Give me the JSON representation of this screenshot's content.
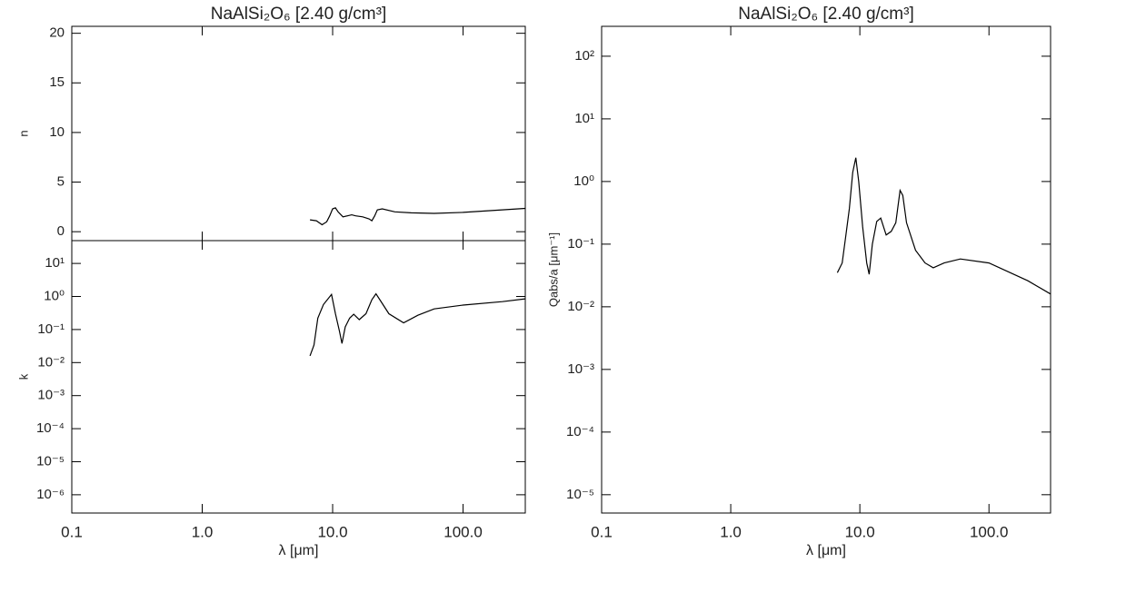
{
  "chart_data": [
    {
      "type": "line",
      "title": "NaAlSi₂O₆ [2.40 g/cm³]",
      "y_label": "n",
      "xlog": true,
      "ylog": false,
      "xlim": [
        0.1,
        300
      ],
      "ylim": [
        -0.9,
        20.7
      ],
      "yticks": [
        0,
        5,
        10,
        15,
        20
      ],
      "x": [
        6.7,
        7.5,
        8.3,
        9,
        9.5,
        10,
        10.5,
        11,
        12,
        13,
        14,
        15,
        17,
        19,
        20,
        21,
        22,
        24,
        30,
        40,
        60,
        100,
        200,
        300
      ],
      "series": [
        {
          "name": "n",
          "color": "#000000",
          "values": [
            1.2,
            1.1,
            0.7,
            1.0,
            1.6,
            2.3,
            2.4,
            2.0,
            1.5,
            1.6,
            1.7,
            1.6,
            1.5,
            1.3,
            1.1,
            1.6,
            2.2,
            2.3,
            2.0,
            1.9,
            1.85,
            1.95,
            2.2,
            2.35
          ]
        }
      ]
    },
    {
      "type": "line",
      "x_label": "λ [μm]",
      "y_label": "k",
      "xlog": true,
      "ylog": true,
      "xlim": [
        0.1,
        300
      ],
      "ylim": [
        2.8e-07,
        49
      ],
      "xticks": [
        0.1,
        {
          "value": 1,
          "label": "1.0"
        },
        {
          "value": 10,
          "label": "10.0"
        },
        {
          "value": 100,
          "label": "100.0"
        }
      ],
      "yticks": [
        {
          "value": 1e-06,
          "label": "10⁻⁶"
        },
        {
          "value": 1e-05,
          "label": "10⁻⁵"
        },
        {
          "value": 0.0001,
          "label": "10⁻⁴"
        },
        {
          "value": 0.001,
          "label": "10⁻³"
        },
        {
          "value": 0.01,
          "label": "10⁻²"
        },
        {
          "value": 0.1,
          "label": "10⁻¹"
        },
        {
          "value": 1,
          "label": "10⁰"
        },
        {
          "value": 10,
          "label": "10¹"
        }
      ],
      "x": [
        6.7,
        7.2,
        7.7,
        8.5,
        9.8,
        10.5,
        11.3,
        11.8,
        12.5,
        13.5,
        14.5,
        16,
        18,
        20,
        21.5,
        23,
        27,
        35,
        45,
        60,
        100,
        200,
        300
      ],
      "series": [
        {
          "name": "k",
          "color": "#000000",
          "values": [
            0.016,
            0.034,
            0.22,
            0.57,
            1.15,
            0.3,
            0.087,
            0.038,
            0.12,
            0.22,
            0.29,
            0.2,
            0.3,
            0.8,
            1.2,
            0.8,
            0.3,
            0.16,
            0.27,
            0.42,
            0.55,
            0.7,
            0.85
          ]
        }
      ]
    },
    {
      "type": "line",
      "title": "NaAlSi₂O₆ [2.40 g/cm³]",
      "x_label": "λ [μm]",
      "y_label": "Qabs/a [μm⁻¹]",
      "xlog": true,
      "ylog": true,
      "xlim": [
        0.1,
        300
      ],
      "ylim": [
        5.1e-06,
        300
      ],
      "xticks": [
        0.1,
        {
          "value": 1,
          "label": "1.0"
        },
        {
          "value": 10,
          "label": "10.0"
        },
        {
          "value": 100,
          "label": "100.0"
        }
      ],
      "yticks": [
        {
          "value": 1e-05,
          "label": "10⁻⁵"
        },
        {
          "value": 0.0001,
          "label": "10⁻⁴"
        },
        {
          "value": 0.001,
          "label": "10⁻³"
        },
        {
          "value": 0.01,
          "label": "10⁻²"
        },
        {
          "value": 0.1,
          "label": "10⁻¹"
        },
        {
          "value": 1,
          "label": "10⁰"
        },
        {
          "value": 10,
          "label": "10¹"
        },
        {
          "value": 100,
          "label": "10²"
        }
      ],
      "x": [
        6.7,
        7.3,
        7.8,
        8.3,
        8.8,
        9.3,
        9.8,
        10.5,
        11.3,
        11.8,
        12.5,
        13.5,
        14.5,
        16,
        17.5,
        19,
        20.5,
        21.5,
        23,
        27,
        32,
        37,
        45,
        60,
        100,
        200,
        300
      ],
      "series": [
        {
          "name": "Qabs/a",
          "color": "#000000",
          "values": [
            0.035,
            0.05,
            0.14,
            0.37,
            1.4,
            2.4,
            1.0,
            0.19,
            0.05,
            0.033,
            0.1,
            0.23,
            0.26,
            0.14,
            0.16,
            0.22,
            0.72,
            0.6,
            0.22,
            0.08,
            0.05,
            0.042,
            0.05,
            0.058,
            0.05,
            0.026,
            0.016
          ]
        }
      ]
    }
  ]
}
